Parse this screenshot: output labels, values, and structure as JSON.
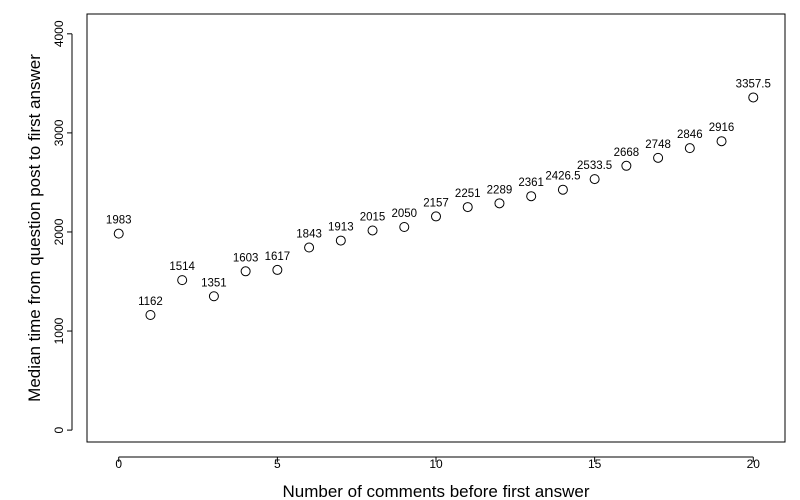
{
  "chart_data": {
    "type": "scatter",
    "title": "",
    "xlabel": "Number of comments before first answer",
    "ylabel": "Median time from question post to first answer",
    "xlim": [
      -1,
      21
    ],
    "ylim": [
      -120,
      4200
    ],
    "x_ticks": [
      0,
      5,
      10,
      15,
      20
    ],
    "y_ticks": [
      0,
      1000,
      2000,
      3000,
      4000
    ],
    "grid": false,
    "marker": "open-circle",
    "x": [
      0,
      1,
      2,
      3,
      4,
      5,
      6,
      7,
      8,
      9,
      10,
      11,
      12,
      13,
      14,
      15,
      16,
      17,
      18,
      19,
      20
    ],
    "y": [
      1983,
      1162,
      1514,
      1351,
      1603,
      1617,
      1843,
      1913,
      2015,
      2050,
      2157,
      2251,
      2289,
      2361,
      2426.5,
      2533.5,
      2668,
      2748,
      2846,
      2916,
      3357.5
    ],
    "point_labels": [
      "1983",
      "1162",
      "1514",
      "1351",
      "1603",
      "1617",
      "1843",
      "1913",
      "2015",
      "2050",
      "2157",
      "2251",
      "2289",
      "2361",
      "2426.5",
      "2533.5",
      "2668",
      "2748",
      "2846",
      "2916",
      "3357.5"
    ],
    "colors": {
      "marker_stroke": "#000000",
      "axis": "#000000",
      "background": "#ffffff"
    }
  }
}
